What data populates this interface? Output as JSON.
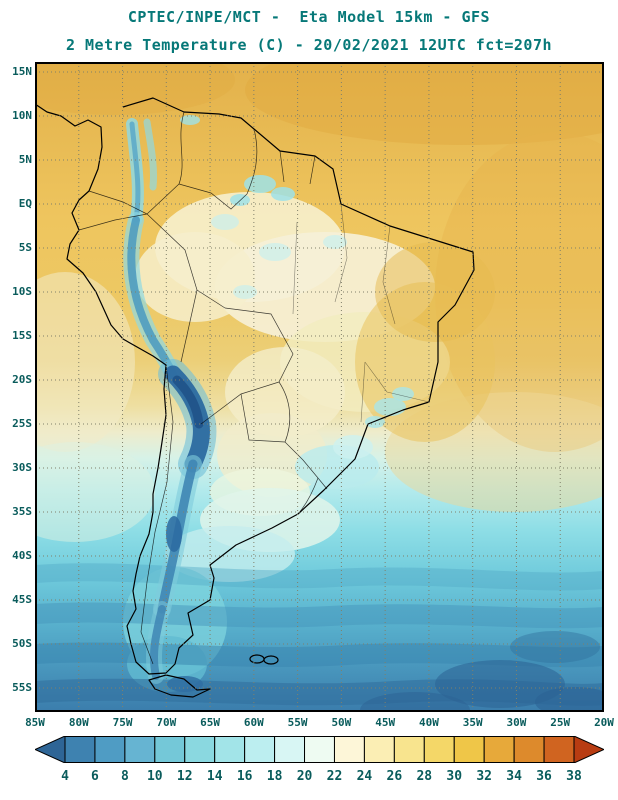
{
  "header": {
    "title_line1": "CPTEC/INPE/MCT -  Eta Model 15km - GFS",
    "title_line2": "2 Metre Temperature (C) - 20/02/2021 12UTC fct=207h"
  },
  "map": {
    "lat_labels": [
      "15N",
      "10N",
      "5N",
      "EQ",
      "5S",
      "10S",
      "15S",
      "20S",
      "25S",
      "30S",
      "35S",
      "40S",
      "45S",
      "50S",
      "55S"
    ],
    "lon_labels": [
      "85W",
      "80W",
      "75W",
      "70W",
      "65W",
      "60W",
      "55W",
      "50W",
      "45W",
      "40W",
      "35W",
      "30W",
      "25W",
      "20W"
    ],
    "grid_color": "#80806a",
    "frame_color": "#000000",
    "label_color": "#0a5c5c",
    "title_color": "#067878"
  },
  "colorbar": {
    "tick_labels": [
      "4",
      "6",
      "8",
      "10",
      "12",
      "14",
      "16",
      "18",
      "20",
      "22",
      "24",
      "26",
      "28",
      "30",
      "32",
      "34",
      "36",
      "38"
    ],
    "colors": [
      "#2e6596",
      "#3e82b0",
      "#4f9cc4",
      "#66b4d2",
      "#74c8d8",
      "#8ad8e0",
      "#a2e4e8",
      "#bceef0",
      "#d8f6f4",
      "#eefbf2",
      "#fdf6d8",
      "#fbeeb4",
      "#f8e48e",
      "#f4d768",
      "#efc648",
      "#e7a93a",
      "#dd8a2c",
      "#d06420",
      "#b83c12"
    ],
    "label_color": "#0a5c5c"
  },
  "chart_data": {
    "type": "heatmap",
    "title": "2 Metre Temperature (C)",
    "subtitle": "20/02/2021 12UTC fct=207h",
    "source_line": "CPTEC/INPE/MCT -  Eta Model 15km - GFS",
    "x_ticks": [
      "85W",
      "80W",
      "75W",
      "70W",
      "65W",
      "60W",
      "55W",
      "50W",
      "45W",
      "40W",
      "35W",
      "30W",
      "25W",
      "20W"
    ],
    "y_ticks": [
      "15N",
      "10N",
      "5N",
      "EQ",
      "5S",
      "10S",
      "15S",
      "20S",
      "25S",
      "30S",
      "35S",
      "40S",
      "45S",
      "50S",
      "55S"
    ],
    "colorbar_values_celsius": [
      4,
      6,
      8,
      10,
      12,
      14,
      16,
      18,
      20,
      22,
      24,
      26,
      28,
      30,
      32,
      34,
      36,
      38
    ],
    "legend_position": "bottom",
    "grid": true
  }
}
